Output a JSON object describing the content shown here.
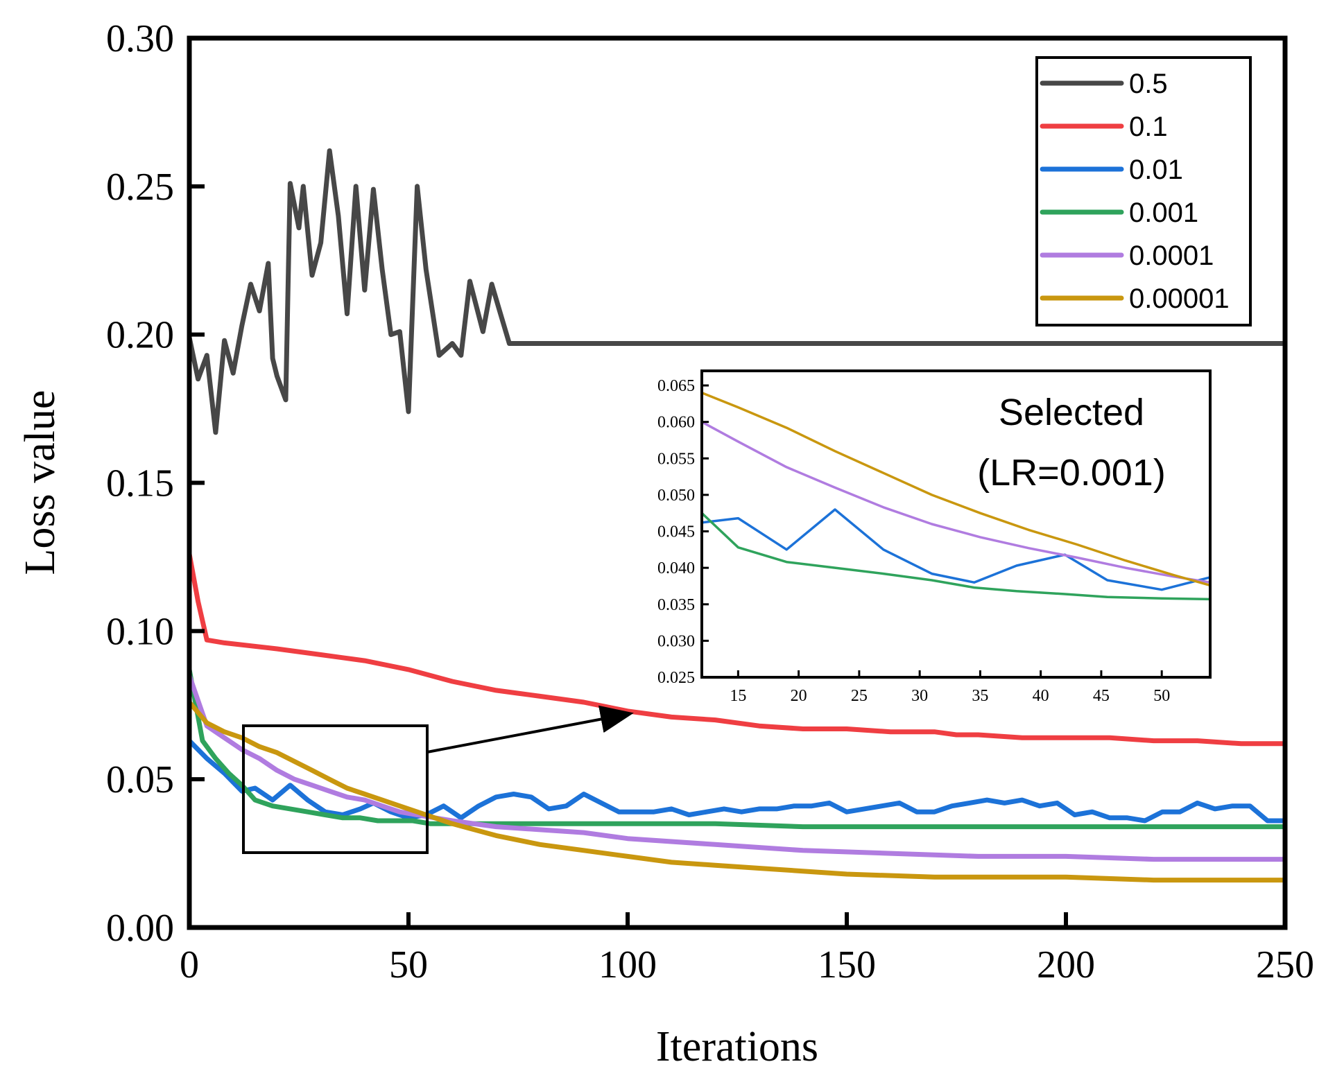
{
  "chart_data": [
    {
      "type": "line",
      "title": "",
      "xlabel": "Iterations",
      "ylabel": "Loss value",
      "xlim": [
        0,
        250
      ],
      "ylim": [
        0,
        0.3
      ],
      "xticks": [
        0,
        50,
        100,
        150,
        200,
        250
      ],
      "xtick_labels": [
        "0",
        "50",
        "100",
        "150",
        "200",
        "250"
      ],
      "yticks": [
        0,
        0.05,
        0.1,
        0.15,
        0.2,
        0.25,
        0.3
      ],
      "ytick_labels": [
        "0.00",
        "0.05",
        "0.10",
        "0.15",
        "0.20",
        "0.25",
        "0.30"
      ],
      "legend_position": "top-right",
      "series": [
        {
          "name": "0.5",
          "color": "#474747",
          "x": [
            0,
            2,
            4,
            6,
            8,
            10,
            12,
            14,
            16,
            18,
            19,
            20,
            22,
            23,
            25,
            26,
            28,
            30,
            32,
            34,
            36,
            38,
            40,
            42,
            44,
            46,
            48,
            50,
            52,
            54,
            57,
            60,
            62,
            64,
            67,
            69,
            71,
            73,
            74,
            77,
            79,
            80,
            82,
            84,
            86,
            250
          ],
          "y": [
            0.199,
            0.185,
            0.193,
            0.167,
            0.198,
            0.187,
            0.203,
            0.217,
            0.208,
            0.224,
            0.192,
            0.186,
            0.178,
            0.251,
            0.236,
            0.25,
            0.22,
            0.231,
            0.262,
            0.24,
            0.207,
            0.25,
            0.215,
            0.249,
            0.222,
            0.2,
            0.201,
            0.174,
            0.25,
            0.222,
            0.193,
            0.197,
            0.193,
            0.218,
            0.201,
            0.217,
            0.207,
            0.197,
            0.197,
            0.197,
            0.197,
            0.197,
            0.197,
            0.197,
            0.197,
            0.197
          ]
        },
        {
          "name": "0.1",
          "color": "#ef3e42",
          "x": [
            0,
            2,
            4,
            8,
            20,
            30,
            35,
            40,
            50,
            60,
            70,
            75,
            80,
            90,
            100,
            110,
            120,
            130,
            140,
            150,
            160,
            170,
            175,
            180,
            190,
            200,
            210,
            220,
            230,
            240,
            245,
            250
          ],
          "y": [
            0.126,
            0.11,
            0.097,
            0.096,
            0.094,
            0.092,
            0.091,
            0.09,
            0.087,
            0.083,
            0.08,
            0.079,
            0.078,
            0.076,
            0.073,
            0.071,
            0.07,
            0.068,
            0.067,
            0.067,
            0.066,
            0.066,
            0.065,
            0.065,
            0.064,
            0.064,
            0.064,
            0.063,
            0.063,
            0.062,
            0.062,
            0.062
          ]
        },
        {
          "name": "0.01",
          "color": "#1c72d8",
          "x": [
            0,
            4,
            8,
            12,
            15,
            19,
            23,
            27,
            31,
            35,
            39,
            42,
            46,
            50,
            54,
            58,
            62,
            66,
            70,
            74,
            78,
            82,
            86,
            90,
            94,
            98,
            102,
            106,
            110,
            114,
            118,
            122,
            126,
            130,
            134,
            138,
            142,
            146,
            150,
            154,
            158,
            162,
            166,
            170,
            174,
            178,
            182,
            186,
            190,
            194,
            198,
            202,
            206,
            210,
            214,
            218,
            222,
            226,
            230,
            234,
            238,
            242,
            246,
            250
          ],
          "y": [
            0.063,
            0.057,
            0.052,
            0.046,
            0.047,
            0.043,
            0.048,
            0.043,
            0.039,
            0.038,
            0.04,
            0.042,
            0.039,
            0.037,
            0.038,
            0.041,
            0.037,
            0.041,
            0.044,
            0.045,
            0.044,
            0.04,
            0.041,
            0.045,
            0.042,
            0.039,
            0.039,
            0.039,
            0.04,
            0.038,
            0.039,
            0.04,
            0.039,
            0.04,
            0.04,
            0.041,
            0.041,
            0.042,
            0.039,
            0.04,
            0.041,
            0.042,
            0.039,
            0.039,
            0.041,
            0.042,
            0.043,
            0.042,
            0.043,
            0.041,
            0.042,
            0.038,
            0.039,
            0.037,
            0.037,
            0.036,
            0.039,
            0.039,
            0.042,
            0.04,
            0.041,
            0.041,
            0.036,
            0.036
          ]
        },
        {
          "name": "0.001",
          "color": "#2fa35c",
          "x": [
            0,
            3,
            6,
            9,
            12,
            15,
            19,
            23,
            27,
            31,
            35,
            39,
            43,
            47,
            51,
            55,
            60,
            70,
            80,
            90,
            100,
            120,
            140,
            150,
            160,
            180,
            200,
            220,
            250
          ],
          "y": [
            0.087,
            0.063,
            0.057,
            0.052,
            0.048,
            0.043,
            0.041,
            0.04,
            0.039,
            0.038,
            0.037,
            0.037,
            0.036,
            0.036,
            0.036,
            0.035,
            0.035,
            0.035,
            0.035,
            0.035,
            0.035,
            0.035,
            0.034,
            0.034,
            0.034,
            0.034,
            0.034,
            0.034,
            0.034
          ]
        },
        {
          "name": "0.0001",
          "color": "#b07ce0",
          "x": [
            0,
            4,
            8,
            12,
            16,
            20,
            24,
            28,
            32,
            36,
            40,
            44,
            48,
            52,
            56,
            60,
            70,
            80,
            90,
            100,
            120,
            140,
            160,
            180,
            200,
            220,
            250
          ],
          "y": [
            0.085,
            0.068,
            0.064,
            0.06,
            0.057,
            0.053,
            0.05,
            0.048,
            0.046,
            0.044,
            0.043,
            0.041,
            0.039,
            0.038,
            0.037,
            0.036,
            0.034,
            0.033,
            0.032,
            0.03,
            0.028,
            0.026,
            0.025,
            0.024,
            0.024,
            0.023,
            0.023
          ]
        },
        {
          "name": "0.00001",
          "color": "#c9970f",
          "x": [
            0,
            4,
            8,
            12,
            16,
            20,
            24,
            28,
            32,
            36,
            40,
            44,
            48,
            52,
            56,
            60,
            70,
            80,
            90,
            100,
            110,
            120,
            130,
            140,
            150,
            170,
            200,
            220,
            250
          ],
          "y": [
            0.076,
            0.069,
            0.066,
            0.064,
            0.061,
            0.059,
            0.056,
            0.053,
            0.05,
            0.047,
            0.045,
            0.043,
            0.041,
            0.039,
            0.037,
            0.035,
            0.031,
            0.028,
            0.026,
            0.024,
            0.022,
            0.021,
            0.02,
            0.019,
            0.018,
            0.017,
            0.017,
            0.016,
            0.016
          ]
        }
      ]
    },
    {
      "type": "line",
      "title": "Selected (LR=0.001)",
      "xlim": [
        12,
        54
      ],
      "ylim": [
        0.025,
        0.067
      ],
      "xticks": [
        15,
        20,
        25,
        30,
        35,
        40,
        45,
        50
      ],
      "xtick_labels": [
        "15",
        "20",
        "25",
        "30",
        "35",
        "40",
        "45",
        "50"
      ],
      "yticks": [
        0.025,
        0.03,
        0.035,
        0.04,
        0.045,
        0.05,
        0.055,
        0.06,
        0.065
      ],
      "ytick_labels": [
        "0.025",
        "0.030",
        "0.035",
        "0.040",
        "0.045",
        "0.050",
        "0.055",
        "0.060",
        "0.065"
      ],
      "series": [
        {
          "name": "0.01",
          "color": "#1c72d8",
          "x": [
            12,
            15,
            19,
            23,
            27,
            31,
            34.5,
            38,
            42,
            45.5,
            50,
            54
          ],
          "y": [
            0.0462,
            0.0468,
            0.0425,
            0.048,
            0.0425,
            0.0392,
            0.038,
            0.0403,
            0.0418,
            0.0383,
            0.037,
            0.0387
          ]
        },
        {
          "name": "0.001",
          "color": "#2fa35c",
          "x": [
            12,
            15,
            19,
            23,
            27,
            31,
            34.5,
            38,
            42,
            45.5,
            50,
            54
          ],
          "y": [
            0.0475,
            0.0428,
            0.0408,
            0.04,
            0.0392,
            0.0383,
            0.0373,
            0.0368,
            0.0364,
            0.036,
            0.0358,
            0.0357
          ]
        },
        {
          "name": "0.0001",
          "color": "#b07ce0",
          "x": [
            12,
            15,
            19,
            23,
            27,
            31,
            35,
            39,
            43,
            47,
            51,
            54
          ],
          "y": [
            0.06,
            0.0573,
            0.0538,
            0.051,
            0.0483,
            0.046,
            0.0442,
            0.0427,
            0.0414,
            0.04,
            0.0388,
            0.038
          ]
        },
        {
          "name": "0.00001",
          "color": "#c9970f",
          "x": [
            12,
            15,
            19,
            23,
            27,
            31,
            35,
            39,
            43,
            47,
            51,
            54
          ],
          "y": [
            0.064,
            0.062,
            0.0592,
            0.056,
            0.053,
            0.05,
            0.0475,
            0.0452,
            0.0432,
            0.041,
            0.039,
            0.0376
          ]
        }
      ]
    }
  ]
}
